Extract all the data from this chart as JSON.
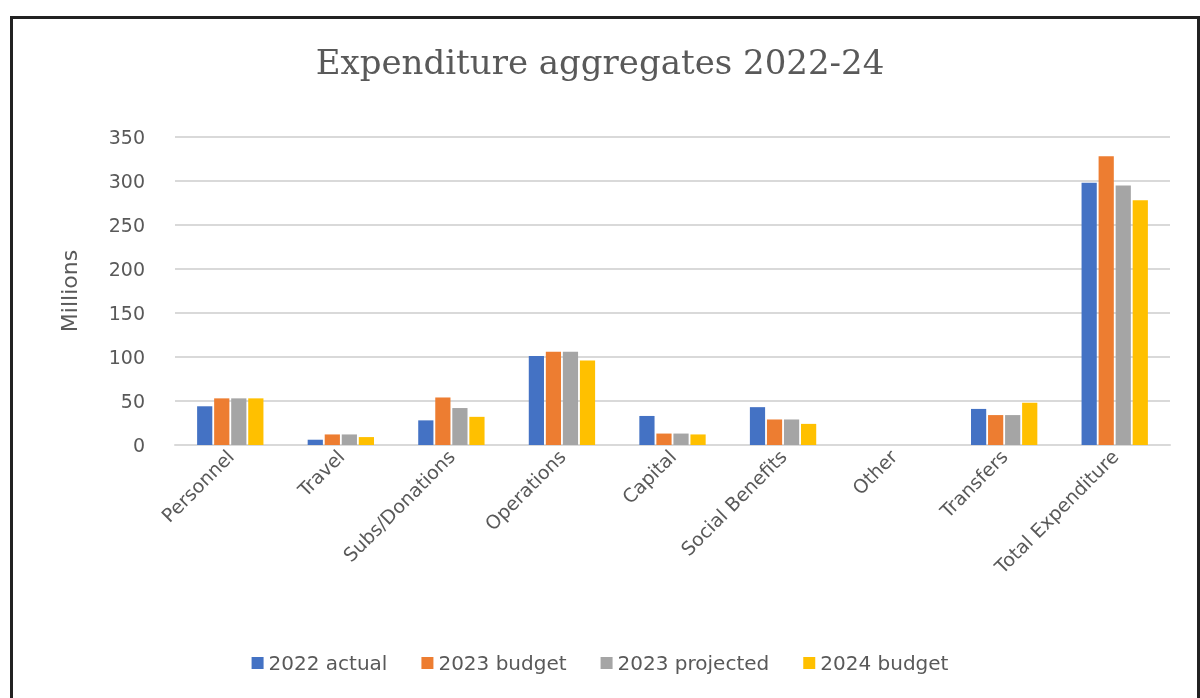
{
  "chart_data": {
    "type": "bar",
    "title": "Expenditure aggregates 2022-24",
    "ylabel": "Millions",
    "categories": [
      "Personnel",
      "Travel",
      "Subs/Donations",
      "Operations",
      "Capital",
      "Social Benefits",
      "Other",
      "Transfers",
      "Total Expenditure"
    ],
    "series": [
      {
        "name": "2022 actual",
        "color": "#4472c4",
        "values": [
          44,
          6,
          28,
          101,
          33,
          43,
          0,
          41,
          298
        ]
      },
      {
        "name": "2023 budget",
        "color": "#ed7d31",
        "values": [
          53,
          12,
          54,
          106,
          13,
          29,
          0,
          34,
          328
        ]
      },
      {
        "name": "2023 projected",
        "color": "#a5a5a5",
        "values": [
          53,
          12,
          42,
          106,
          13,
          29,
          0,
          34,
          295
        ]
      },
      {
        "name": "2024 budget",
        "color": "#ffc000",
        "values": [
          53,
          9,
          32,
          96,
          12,
          24,
          0,
          48,
          278
        ]
      }
    ],
    "ylim": [
      0,
      350
    ],
    "yticks": [
      0,
      50,
      100,
      150,
      200,
      250,
      300,
      350
    ],
    "grid": "y",
    "legend": "bottom"
  }
}
